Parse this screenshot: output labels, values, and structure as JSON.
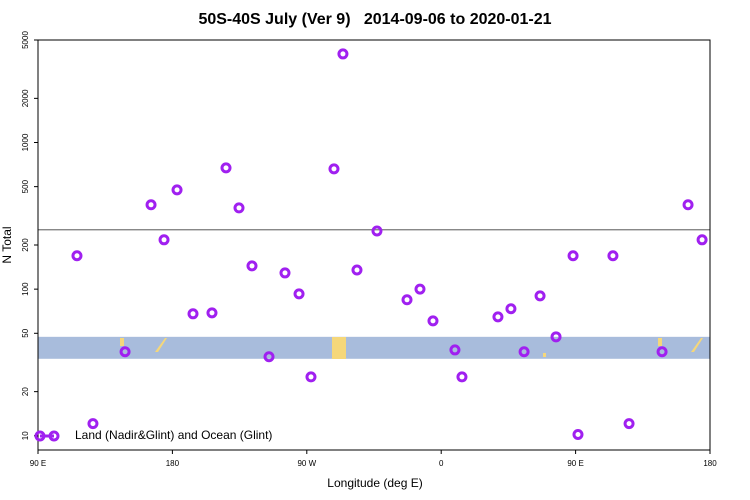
{
  "chart_data": {
    "type": "scatter",
    "title": "50S-40S July (Ver 9)   2014-09-06 to 2020-01-21",
    "xlabel": "Longitude (deg E)",
    "ylabel": "N Total",
    "log_y": true,
    "xlim": [
      90,
      540
    ],
    "ylim": [
      8,
      5000
    ],
    "xticks": [
      {
        "value": 90,
        "label": "90 E"
      },
      {
        "value": 180,
        "label": "180"
      },
      {
        "value": 270,
        "label": "90 W"
      },
      {
        "value": 360,
        "label": "0"
      },
      {
        "value": 450,
        "label": "90 E"
      },
      {
        "value": 540,
        "label": "180"
      }
    ],
    "yticks": [
      10,
      20,
      50,
      100,
      200,
      500,
      1000,
      2000,
      5000
    ],
    "reference_line": 254,
    "band": [
      33.5,
      47.3
    ],
    "band_color": "#a8bcdc",
    "reference_line_color": "#777777",
    "legend_position": "bottom left",
    "series": [
      {
        "name": "Land (Nadir&Glint) and Ocean (Glint)",
        "color": "#a020f0",
        "x": [
          116.1,
          126.8,
          148.3,
          165.7,
          174.4,
          183.1,
          193.8,
          206.5,
          215.9,
          224.6,
          233.3,
          244.7,
          255.4,
          264.8,
          272.8,
          288.2,
          294.2,
          303.6,
          317,
          337.1,
          345.8,
          354.5,
          369.2,
          373.9,
          398,
          406.7,
          415.5,
          426.2,
          436.9,
          448.3,
          451.6,
          475,
          485.8,
          507.9,
          525.3,
          534.7
        ],
        "values": [
          169,
          12.1,
          37.4,
          376,
          217,
          475,
          67.9,
          68.9,
          671,
          358,
          144,
          34.6,
          129,
          92.9,
          25.2,
          661,
          4018,
          135,
          249,
          84.6,
          100,
          60.8,
          38.5,
          25.2,
          64.7,
          73.5,
          37.4,
          90,
          47.3,
          169,
          10.2,
          169,
          12.1,
          37.4,
          376,
          217
        ]
      }
    ]
  }
}
